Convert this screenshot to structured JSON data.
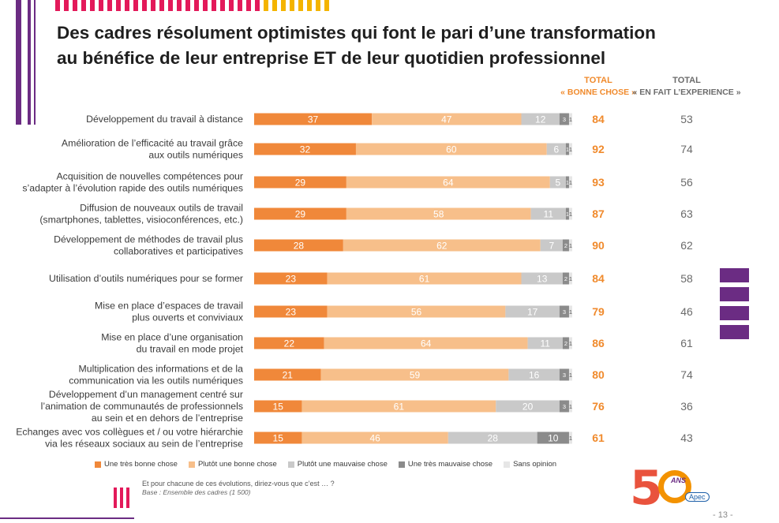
{
  "title_line1": "Des cadres résolument optimistes qui font le pari d’une transformation",
  "title_line2": "au bénéfice de leur entreprise ET de leur quotidien professionnel",
  "colors": {
    "tres_bonne": "#f0883a",
    "plutot_bonne": "#f7bf8a",
    "plutot_mauvaise": "#c9c9c9",
    "tres_mauvaise": "#8b8b8b",
    "sans_opinion": "#e6e6e6",
    "total_orange": "#f08a2c",
    "total_grey": "#6b6b6b",
    "purple": "#6b2c83",
    "yellow": "#f4b400",
    "pink": "#e3195a"
  },
  "headers": {
    "total_bonne_l1": "TOTAL",
    "total_bonne_l2": "« BONNE CHOSE »",
    "total_exp_l1": "TOTAL",
    "total_exp_l2": "« EN FAIT L’EXPERIENCE »"
  },
  "chart_data": {
    "type": "bar",
    "orientation": "horizontal-stacked-100",
    "categories": [
      [
        "Développement du travail à distance"
      ],
      [
        "Amélioration de l’efficacité au travail grâce",
        "aux outils numériques"
      ],
      [
        "Acquisition de nouvelles compétences pour",
        "s’adapter à l’évolution rapide des outils numériques"
      ],
      [
        "Diffusion de nouveaux outils de travail",
        "(smartphones, tablettes, visioconférences, etc.)"
      ],
      [
        "Développement de méthodes de travail plus",
        "collaboratives et participatives"
      ],
      [
        "Utilisation d’outils numériques pour se former"
      ],
      [
        "Mise en place d’espaces de travail",
        "plus ouverts et conviviaux"
      ],
      [
        "Mise en place d’une organisation",
        "du travail en mode projet"
      ],
      [
        "Multiplication des informations et de la",
        "communication via les outils numériques"
      ],
      [
        "Développement d’un management centré sur",
        "l’animation de communautés de professionnels",
        "au sein et en dehors de l’entreprise"
      ],
      [
        "Echanges avec vos collègues et / ou votre hiérarchie",
        "via les réseaux sociaux au sein de l’entreprise"
      ]
    ],
    "series": [
      {
        "name": "Une très bonne chose",
        "values": [
          37,
          32,
          29,
          29,
          28,
          23,
          23,
          22,
          21,
          15,
          15
        ]
      },
      {
        "name": "Plutôt une bonne chose",
        "values": [
          47,
          60,
          64,
          58,
          62,
          61,
          56,
          64,
          59,
          61,
          46
        ]
      },
      {
        "name": "Plutôt une mauvaise chose",
        "values": [
          12,
          6,
          5,
          11,
          7,
          13,
          17,
          11,
          16,
          20,
          28
        ]
      },
      {
        "name": "Une très mauvaise chose",
        "values": [
          3,
          1,
          1,
          1,
          2,
          2,
          3,
          2,
          3,
          3,
          10
        ]
      },
      {
        "name": "Sans opinion",
        "values": [
          1,
          1,
          1,
          1,
          1,
          1,
          1,
          1,
          1,
          1,
          1
        ]
      }
    ],
    "total_bonne_chose": [
      84,
      92,
      93,
      87,
      90,
      84,
      79,
      86,
      80,
      76,
      61
    ],
    "total_en_fait_experience": [
      53,
      74,
      56,
      63,
      62,
      58,
      46,
      61,
      74,
      36,
      43
    ],
    "xlim": [
      0,
      100
    ]
  },
  "legend": [
    "Une très bonne chose",
    "Plutôt une bonne chose",
    "Plutôt une mauvaise chose",
    "Une très mauvaise chose",
    "Sans opinion"
  ],
  "question": "Et pour chacune de ces évolutions, diriez-vous que c’est … ?",
  "base": "Base : Ensemble des cadres (1 500)",
  "logo": {
    "digit": "5",
    "ans": "ANS",
    "apec": "Apec"
  },
  "page_number": "- 13 -"
}
